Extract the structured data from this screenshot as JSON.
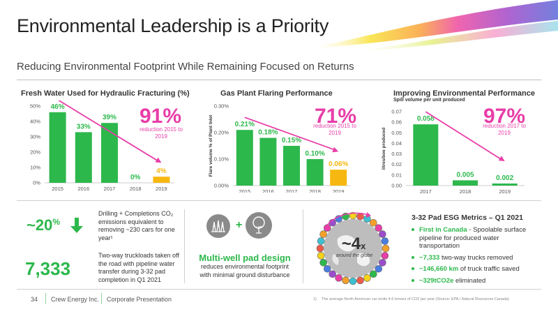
{
  "header": {
    "title": "Environmental Leadership is a Priority",
    "subtitle": "Reducing Environmental Footprint While Remaining Focused on Returns"
  },
  "colors": {
    "green": "#2db84c",
    "yellow": "#f6b810",
    "pink": "#e83ea8"
  },
  "chart_data": [
    {
      "type": "bar",
      "title": "Fresh Water Used for Hydraulic Fracturing (%)",
      "categories": [
        "2015",
        "2016",
        "2017",
        "2018",
        "2019"
      ],
      "values": [
        46,
        33,
        39,
        0,
        4
      ],
      "data_labels": [
        "46%",
        "33%",
        "39%",
        "0%",
        "4%"
      ],
      "bar_colors": [
        "#2db84c",
        "#2db84c",
        "#2db84c",
        "#2db84c",
        "#f6b810"
      ],
      "ylim": [
        0,
        50
      ],
      "yticks": [
        "0%",
        "10%",
        "20%",
        "30%",
        "40%",
        "50%"
      ],
      "xlabel": "",
      "ylabel": "",
      "highlight": {
        "value": "91%",
        "note": "reduction 2015 to 2019"
      }
    },
    {
      "type": "bar",
      "title": "Gas Plant Flaring Performance",
      "categories": [
        "2015",
        "2016",
        "2017",
        "2018",
        "2019"
      ],
      "values": [
        0.21,
        0.18,
        0.15,
        0.1,
        0.06
      ],
      "data_labels": [
        "0.21%",
        "0.18%",
        "0.15%",
        "0.10%",
        "0.06%"
      ],
      "bar_colors": [
        "#2db84c",
        "#2db84c",
        "#2db84c",
        "#2db84c",
        "#f6b810"
      ],
      "ylim": [
        0,
        0.3
      ],
      "yticks": [
        "0.00%",
        "0.10%",
        "0.20%",
        "0.30%"
      ],
      "xlabel": "",
      "ylabel": "Flare volume % of Plant Inlet",
      "highlight": {
        "value": "71%",
        "note": "reduction 2015 to 2019"
      }
    },
    {
      "type": "bar",
      "title": "Improving Environmental Performance",
      "subtitle": "Spill volume per unit produced",
      "categories": [
        "2017",
        "2018",
        "2019"
      ],
      "values": [
        0.058,
        0.005,
        0.002
      ],
      "data_labels": [
        "0.058",
        "0.005",
        "0.002"
      ],
      "bar_colors": [
        "#2db84c",
        "#2db84c",
        "#2db84c"
      ],
      "ylim": [
        0,
        0.07
      ],
      "yticks": [
        "0.00",
        "0.01",
        "0.02",
        "0.03",
        "0.04",
        "0.05",
        "0.06",
        "0.07"
      ],
      "xlabel": "",
      "ylabel": "litres/boe produced",
      "highlight": {
        "value": "97%",
        "note": "reduction 2017 to 2019"
      }
    }
  ],
  "metrics": {
    "co2": {
      "value": "~20",
      "unit": "%",
      "text": "Drilling + Completions CO₂ emissions equivalent to removing ~230 cars for one year¹"
    },
    "trucks": {
      "value": "7,333",
      "text": "Two-way truckloads taken off the road with pipeline water transfer during 3-32 pad completion in Q1 2021"
    }
  },
  "pad": {
    "plus": "+",
    "title": "Multi-well pad design",
    "text": "reduces environmental footprint with minimal ground disturbance"
  },
  "globe": {
    "value": "~4",
    "unit": "x",
    "text": "around the globe"
  },
  "esg": {
    "title": "3-32 Pad ESG Metrics – Q1 2021",
    "items": [
      {
        "bold": "First in Canada",
        "rest": " - Spoolable surface pipeline for produced water transportation"
      },
      {
        "bold": "~7,333",
        "rest": " two-way trucks removed"
      },
      {
        "bold": "~146,660 km",
        "rest": " of truck traffic saved"
      },
      {
        "bold": "~329tCO2e",
        "rest": " eliminated"
      }
    ]
  },
  "footer": {
    "page": "34",
    "company": "Crew Energy Inc.",
    "doc": "Corporate Presentation",
    "note_num": "1)",
    "note": "The average North American car emits 4.6 tonnes of CO2 per year (Source: EPA / Natural Resources Canada)"
  }
}
